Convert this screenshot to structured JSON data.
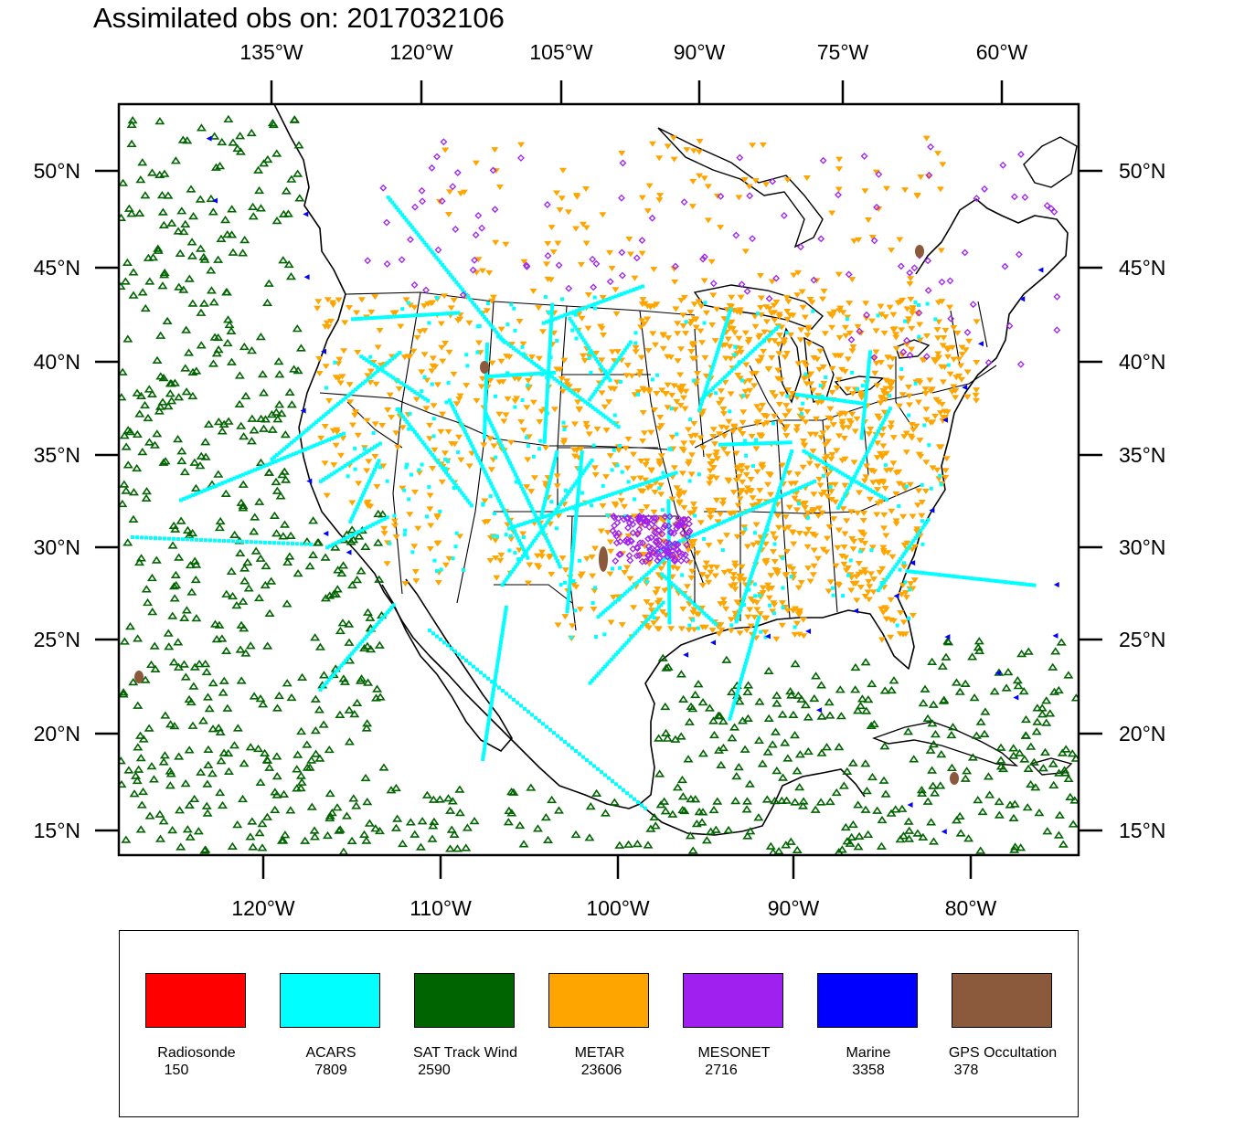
{
  "title": "Assimilated obs on: 2017032106",
  "axes": {
    "top_lon_labels": [
      "135°W",
      "120°W",
      "105°W",
      "90°W",
      "75°W",
      "60°W"
    ],
    "bottom_lon_labels": [
      "120°W",
      "110°W",
      "100°W",
      "90°W",
      "80°W"
    ],
    "lat_labels": [
      "50°N",
      "45°N",
      "40°N",
      "35°N",
      "30°N",
      "25°N",
      "20°N",
      "15°N"
    ]
  },
  "legend": [
    {
      "name": "Radiosonde",
      "count": "150",
      "color": "#ff0000"
    },
    {
      "name": "ACARS",
      "count": "7809",
      "color": "#00ffff"
    },
    {
      "name": "SAT Track Wind",
      "count": "2590",
      "color": "#006400"
    },
    {
      "name": "METAR",
      "count": "23606",
      "color": "#ffa500"
    },
    {
      "name": "MESONET",
      "count": "2716",
      "color": "#a020f0"
    },
    {
      "name": "Marine",
      "count": "3358",
      "color": "#0000ff"
    },
    {
      "name": "GPS Occultation",
      "count": "378",
      "color": "#8b5a3c"
    }
  ],
  "map": {
    "region": "CONUS",
    "lon_range": [
      -128,
      -74
    ],
    "lat_range": [
      14,
      53
    ]
  }
}
